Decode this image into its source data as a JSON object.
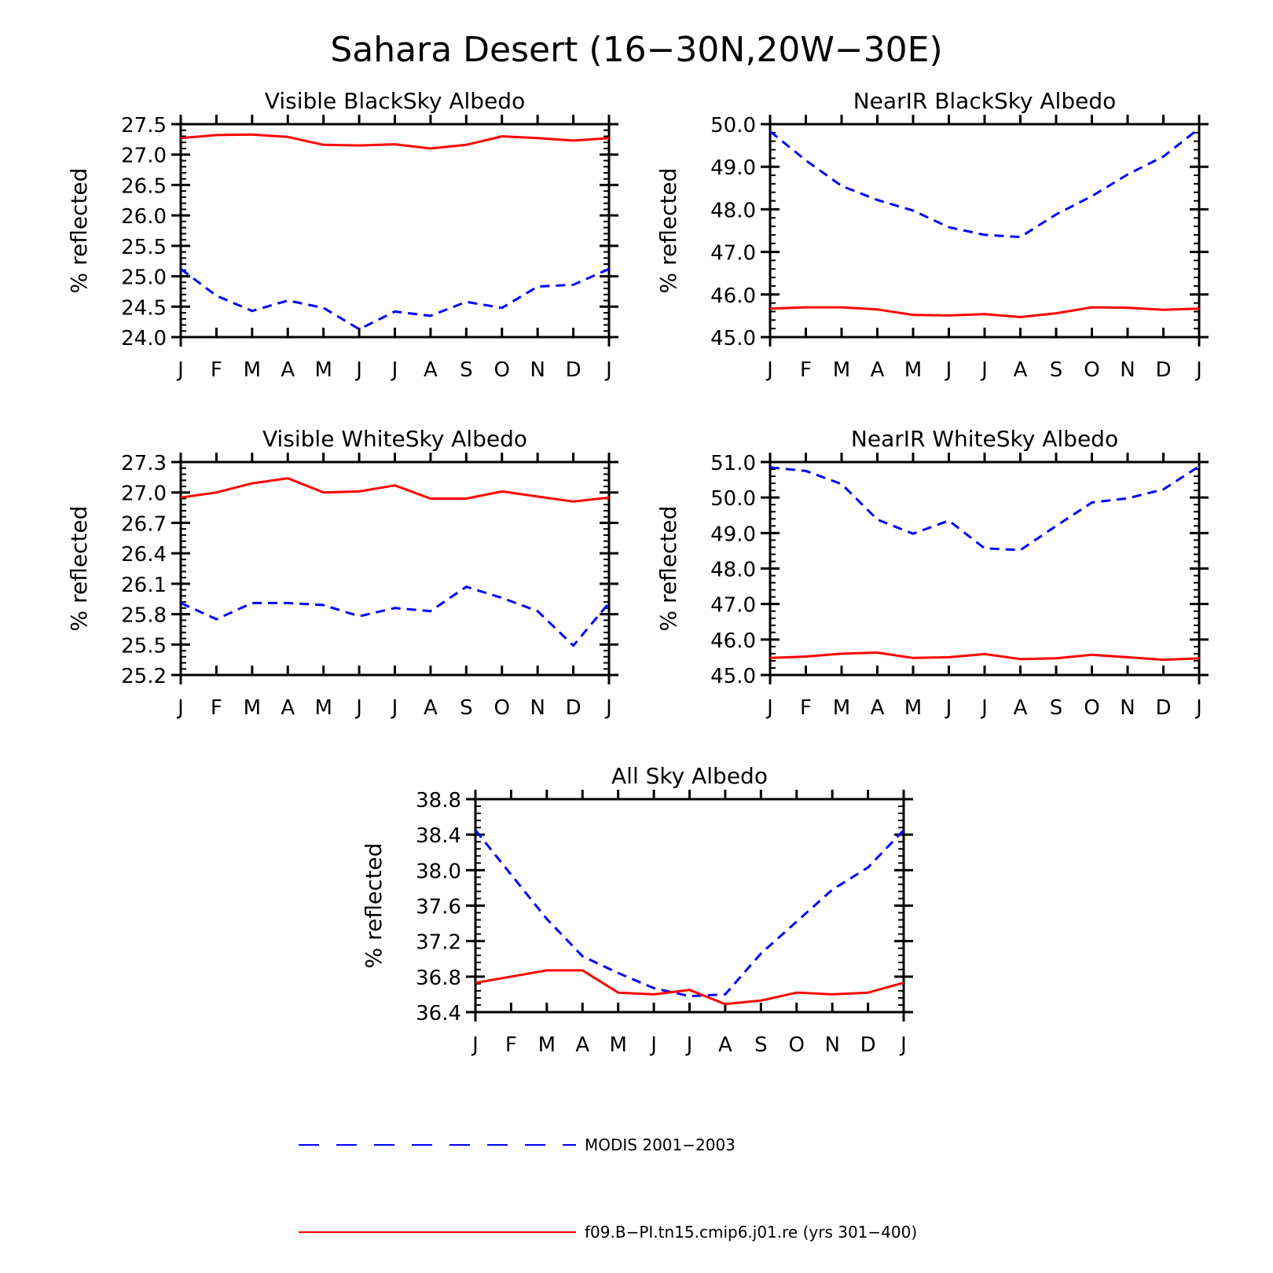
{
  "title": "Sahara Desert (16−30N,20W−30E)",
  "colors": {
    "modis": "#0000ff",
    "model": "#ff0000",
    "axis": "#000000"
  },
  "legend": {
    "modis": "MODIS 2001−2003",
    "model": "f09.B−PI.tn15.cmip6.j01.re (yrs 301−400)"
  },
  "chart_data": [
    {
      "type": "line",
      "title": "Visible BlackSky Albedo",
      "ylabel": "% reflected",
      "categories": [
        "J",
        "F",
        "M",
        "A",
        "M",
        "J",
        "J",
        "A",
        "S",
        "O",
        "N",
        "D",
        "J"
      ],
      "ylim": [
        24.0,
        27.5
      ],
      "yticks": [
        "24.0",
        "24.5",
        "25.0",
        "25.5",
        "26.0",
        "26.5",
        "27.0",
        "27.5"
      ],
      "series": [
        {
          "name": "MODIS 2001−2003",
          "values": [
            25.12,
            24.68,
            24.43,
            24.6,
            24.48,
            24.13,
            24.42,
            24.35,
            24.58,
            24.48,
            24.83,
            24.86,
            25.12
          ]
        },
        {
          "name": "f09.B−PI.tn15.cmip6.j01.re (yrs 301−400)",
          "values": [
            27.27,
            27.32,
            27.33,
            27.29,
            27.16,
            27.15,
            27.17,
            27.1,
            27.16,
            27.3,
            27.27,
            27.23,
            27.27
          ]
        }
      ]
    },
    {
      "type": "line",
      "title": "NearIR BlackSky Albedo",
      "ylabel": "% reflected",
      "categories": [
        "J",
        "F",
        "M",
        "A",
        "M",
        "J",
        "J",
        "A",
        "S",
        "O",
        "N",
        "D",
        "J"
      ],
      "ylim": [
        45.0,
        50.0
      ],
      "yticks": [
        "45.0",
        "46.0",
        "47.0",
        "48.0",
        "49.0",
        "50.0"
      ],
      "series": [
        {
          "name": "MODIS 2001−2003",
          "values": [
            49.83,
            49.15,
            48.55,
            48.22,
            47.97,
            47.58,
            47.4,
            47.35,
            47.88,
            48.31,
            48.82,
            49.24,
            49.9
          ]
        },
        {
          "name": "f09.B−PI.tn15.cmip6.j01.re (yrs 301−400)",
          "values": [
            45.67,
            45.7,
            45.7,
            45.65,
            45.52,
            45.51,
            45.54,
            45.47,
            45.56,
            45.7,
            45.69,
            45.64,
            45.67
          ]
        }
      ]
    },
    {
      "type": "line",
      "title": "Visible WhiteSky Albedo",
      "ylabel": "% reflected",
      "categories": [
        "J",
        "F",
        "M",
        "A",
        "M",
        "J",
        "J",
        "A",
        "S",
        "O",
        "N",
        "D",
        "J"
      ],
      "ylim": [
        25.2,
        27.3
      ],
      "yticks": [
        "25.2",
        "25.5",
        "25.8",
        "26.1",
        "26.4",
        "26.7",
        "27.0",
        "27.3"
      ],
      "series": [
        {
          "name": "MODIS 2001−2003",
          "values": [
            25.91,
            25.75,
            25.91,
            25.91,
            25.89,
            25.78,
            25.86,
            25.83,
            26.07,
            25.96,
            25.83,
            25.49,
            25.91
          ]
        },
        {
          "name": "f09.B−PI.tn15.cmip6.j01.re (yrs 301−400)",
          "values": [
            26.95,
            27.0,
            27.09,
            27.14,
            27.0,
            27.01,
            27.07,
            26.94,
            26.94,
            27.01,
            26.96,
            26.91,
            26.95
          ]
        }
      ]
    },
    {
      "type": "line",
      "title": "NearIR WhiteSky Albedo",
      "ylabel": "% reflected",
      "categories": [
        "J",
        "F",
        "M",
        "A",
        "M",
        "J",
        "J",
        "A",
        "S",
        "O",
        "N",
        "D",
        "J"
      ],
      "ylim": [
        45.0,
        51.0
      ],
      "yticks": [
        "45.0",
        "46.0",
        "47.0",
        "48.0",
        "49.0",
        "50.0",
        "51.0"
      ],
      "series": [
        {
          "name": "MODIS 2001−2003",
          "values": [
            50.85,
            50.75,
            50.38,
            49.38,
            48.98,
            49.35,
            48.57,
            48.52,
            49.2,
            49.86,
            49.98,
            50.23,
            50.88
          ]
        },
        {
          "name": "f09.B−PI.tn15.cmip6.j01.re (yrs 301−400)",
          "values": [
            45.48,
            45.52,
            45.6,
            45.63,
            45.48,
            45.5,
            45.59,
            45.45,
            45.47,
            45.57,
            45.5,
            45.43,
            45.47
          ]
        }
      ]
    },
    {
      "type": "line",
      "title": "All Sky Albedo",
      "ylabel": "% reflected",
      "categories": [
        "J",
        "F",
        "M",
        "A",
        "M",
        "J",
        "J",
        "A",
        "S",
        "O",
        "N",
        "D",
        "J"
      ],
      "ylim": [
        36.4,
        38.8
      ],
      "yticks": [
        "36.4",
        "36.8",
        "37.2",
        "37.6",
        "38.0",
        "38.4",
        "38.8"
      ],
      "series": [
        {
          "name": "MODIS 2001−2003",
          "values": [
            38.45,
            37.95,
            37.45,
            37.03,
            36.84,
            36.67,
            36.58,
            36.6,
            37.06,
            37.42,
            37.78,
            38.03,
            38.45
          ]
        },
        {
          "name": "f09.B−PI.tn15.cmip6.j01.re (yrs 301−400)",
          "values": [
            36.73,
            36.8,
            36.87,
            36.87,
            36.62,
            36.6,
            36.65,
            36.49,
            36.53,
            36.62,
            36.6,
            36.62,
            36.73
          ]
        }
      ]
    }
  ]
}
